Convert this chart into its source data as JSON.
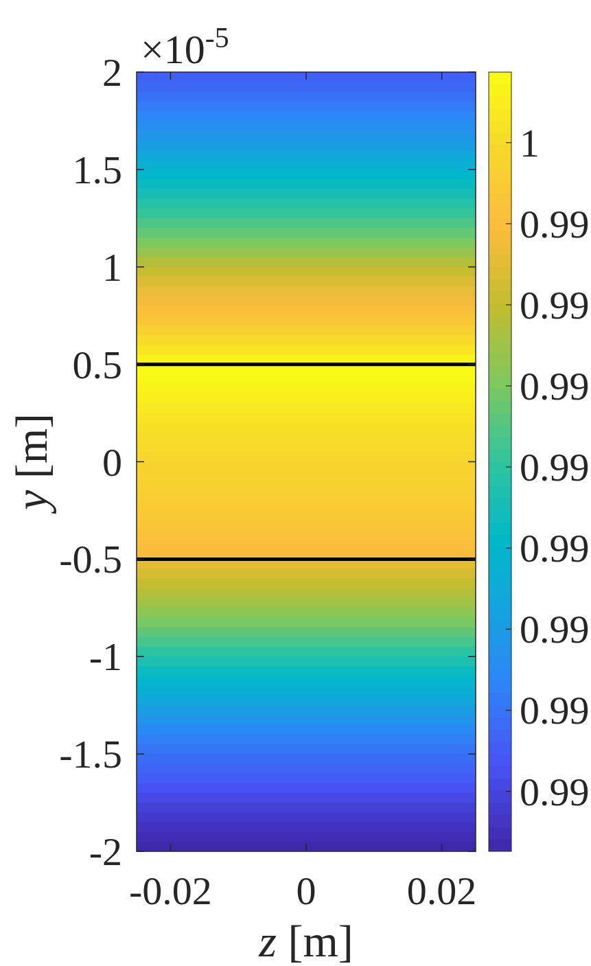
{
  "chart_data": {
    "type": "heatmap",
    "xlabel": "z [m]",
    "ylabel": "y [m]",
    "annotations": [
      "×10$^{-5}$"
    ],
    "cells": [
      [
        0.98859
      ],
      [
        0.98874
      ],
      [
        0.98893
      ],
      [
        0.98915
      ],
      [
        0.98937
      ],
      [
        0.9896
      ],
      [
        0.98982
      ],
      [
        0.99008
      ],
      [
        0.99041
      ],
      [
        0.99074
      ],
      [
        0.99104
      ],
      [
        0.99128
      ],
      [
        0.99154
      ],
      [
        0.99183
      ],
      [
        0.99212
      ],
      [
        0.99242
      ],
      [
        0.99271
      ],
      [
        0.99301
      ],
      [
        0.99337
      ],
      [
        0.99374
      ],
      [
        0.99409
      ],
      [
        0.99441
      ],
      [
        0.99465
      ],
      [
        0.99483
      ],
      [
        0.99506
      ],
      [
        0.99535
      ],
      [
        0.99565
      ],
      [
        0.99598
      ],
      [
        0.9963
      ],
      [
        0.99663
      ],
      [
        0.99685
      ],
      [
        0.99677
      ],
      [
        0.99666
      ],
      [
        0.99654
      ],
      [
        0.99639
      ],
      [
        0.99625
      ],
      [
        0.99615
      ],
      [
        0.99607
      ],
      [
        0.996
      ],
      [
        0.99588
      ],
      [
        0.99578
      ],
      [
        0.99573
      ],
      [
        0.99566
      ],
      [
        0.99559
      ],
      [
        0.99551
      ],
      [
        0.9954
      ],
      [
        0.99528
      ],
      [
        0.99516
      ],
      [
        0.99502
      ],
      [
        0.9949
      ],
      [
        0.99456
      ],
      [
        0.99432
      ],
      [
        0.99405
      ],
      [
        0.99377
      ],
      [
        0.9935
      ],
      [
        0.99322
      ],
      [
        0.99295
      ],
      [
        0.99266
      ],
      [
        0.99233
      ],
      [
        0.99197
      ],
      [
        0.99165
      ],
      [
        0.99132
      ],
      [
        0.99099
      ],
      [
        0.99068
      ],
      [
        0.99037
      ],
      [
        0.99007
      ],
      [
        0.98977
      ],
      [
        0.98947
      ],
      [
        0.98924
      ],
      [
        0.98903
      ],
      [
        0.98886
      ],
      [
        0.9887
      ],
      [
        0.98852
      ],
      [
        0.98832
      ],
      [
        0.98811
      ],
      [
        0.98792
      ],
      [
        0.98774
      ],
      [
        0.98758
      ],
      [
        0.98744
      ],
      [
        0.98732
      ]
    ],
    "clim": [
      0.98726,
      0.99687
    ],
    "cticks": [
      {
        "value": 0.996,
        "label": "1"
      },
      {
        "value": 0.995,
        "label": "0.99"
      },
      {
        "value": 0.994,
        "label": "0.99"
      },
      {
        "value": 0.993,
        "label": "0.99"
      },
      {
        "value": 0.992,
        "label": "0.99"
      },
      {
        "value": 0.991,
        "label": "0.99"
      },
      {
        "value": 0.99,
        "label": "0.99"
      },
      {
        "value": 0.989,
        "label": "0.99"
      },
      {
        "value": 0.988,
        "label": "0.99"
      }
    ],
    "xlim": [
      -0.025,
      0.025
    ],
    "xticks": [
      -0.02,
      0,
      0.02
    ],
    "ylim": [
      -2,
      2
    ],
    "yticks": [
      -2,
      -1.5,
      -1,
      -0.5,
      0,
      0.5,
      1,
      1.5,
      2
    ],
    "ref_lines": [
      {
        "axis": "y",
        "value": 0.5,
        "color": "#000000"
      },
      {
        "axis": "y",
        "value": -0.5,
        "color": "#000000"
      }
    ]
  }
}
